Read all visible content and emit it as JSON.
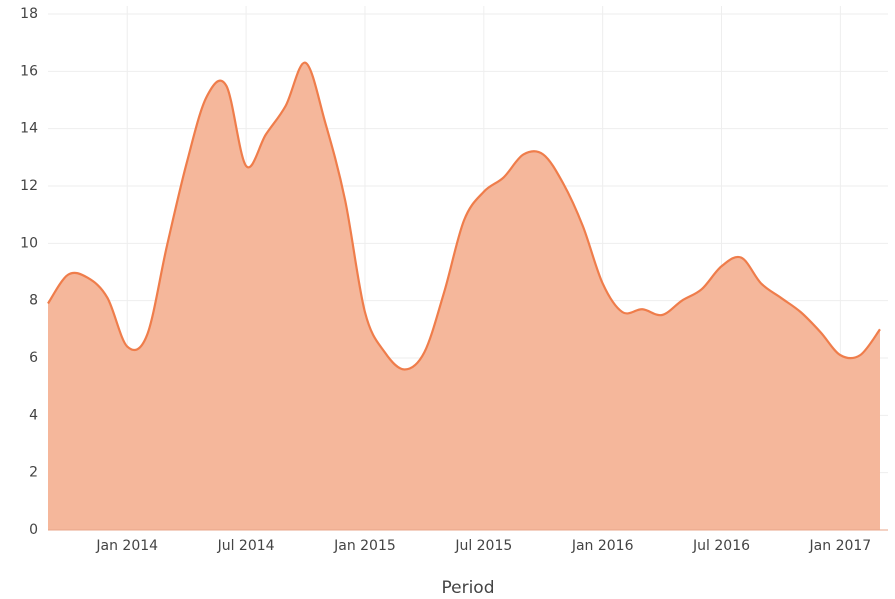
{
  "chart_data": {
    "type": "area",
    "x_label": "Period",
    "x": [
      "2013-09",
      "2013-10",
      "2013-11",
      "2013-12",
      "2014-01",
      "2014-02",
      "2014-03",
      "2014-04",
      "2014-05",
      "2014-06",
      "2014-07",
      "2014-08",
      "2014-09",
      "2014-10",
      "2014-11",
      "2014-12",
      "2015-01",
      "2015-02",
      "2015-03",
      "2015-04",
      "2015-05",
      "2015-06",
      "2015-07",
      "2015-08",
      "2015-09",
      "2015-10",
      "2015-11",
      "2015-12",
      "2016-01",
      "2016-02",
      "2016-03",
      "2016-04",
      "2016-05",
      "2016-06",
      "2016-07",
      "2016-08",
      "2016-09",
      "2016-10",
      "2016-11",
      "2016-12",
      "2017-01",
      "2017-02",
      "2017-03"
    ],
    "values": [
      7.9,
      8.9,
      8.8,
      8.1,
      6.4,
      6.8,
      9.9,
      12.8,
      15.1,
      15.5,
      12.7,
      13.8,
      14.8,
      16.3,
      14.2,
      11.5,
      7.6,
      6.2,
      5.6,
      6.2,
      8.3,
      10.8,
      11.8,
      12.3,
      13.1,
      13.1,
      12.1,
      10.6,
      8.6,
      7.6,
      7.7,
      7.5,
      8.0,
      8.4,
      9.2,
      9.5,
      8.6,
      8.1,
      7.6,
      6.9,
      6.1,
      6.1,
      7.0
    ],
    "color": "#ef7d4b",
    "fill_color": "#f5b79b",
    "xlim": [
      "2013-09",
      "2017-03"
    ],
    "xticks": [
      {
        "value": "2014-01",
        "label": "Jan 2014"
      },
      {
        "value": "2014-07",
        "label": "Jul 2014"
      },
      {
        "value": "2015-01",
        "label": "Jan 2015"
      },
      {
        "value": "2015-07",
        "label": "Jul 2015"
      },
      {
        "value": "2016-01",
        "label": "Jan 2016"
      },
      {
        "value": "2016-07",
        "label": "Jul 2016"
      },
      {
        "value": "2017-01",
        "label": "Jan 2017"
      }
    ],
    "ylim": [
      0,
      18
    ],
    "yticks": [
      0,
      2,
      4,
      6,
      8,
      10,
      12,
      14,
      16,
      18
    ],
    "grid": true
  }
}
